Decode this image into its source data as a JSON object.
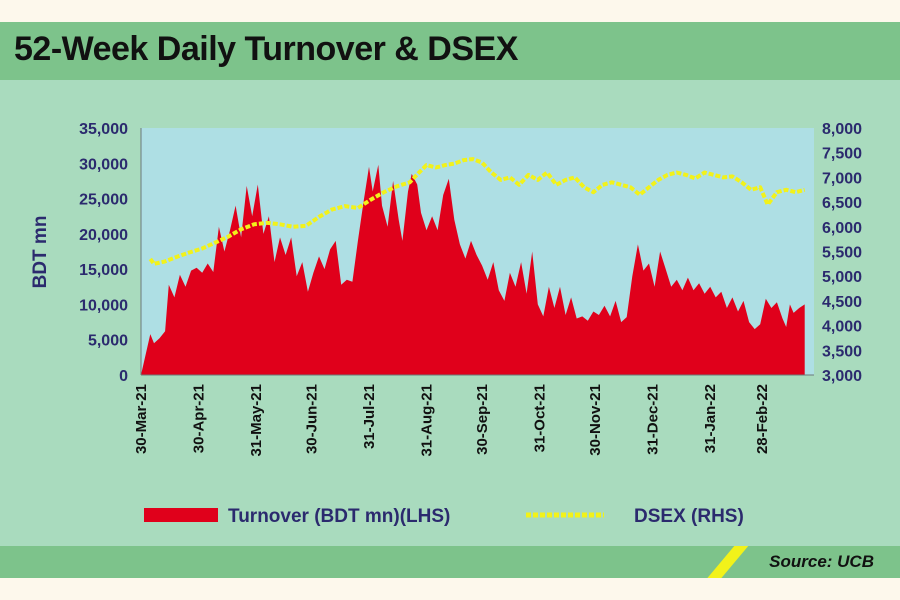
{
  "header": {
    "title": "52-Week Daily Turnover & DSEX"
  },
  "footer": {
    "source": "Source: UCB"
  },
  "colors": {
    "header_bg": "#7dc38b",
    "panel_bg": "#a9dbbe",
    "plot_bg": "#aedfe4",
    "turnover": "#e0001b",
    "dsex": "#f2f21a",
    "axis_text": "#2b2a6e"
  },
  "chart_data": {
    "type": "area",
    "title": "52-Week Daily Turnover & DSEX",
    "ylabel": "BDT mn",
    "y2label": "",
    "ylim": [
      0,
      35000
    ],
    "y2lim": [
      3000,
      8000
    ],
    "yticks": [
      0,
      5000,
      10000,
      15000,
      20000,
      25000,
      30000,
      35000
    ],
    "yticklabels": [
      "0",
      "5,000",
      "10,000",
      "15,000",
      "20,000",
      "25,000",
      "30,000",
      "35,000"
    ],
    "y2ticks": [
      3000,
      3500,
      4000,
      4500,
      5000,
      5500,
      6000,
      6500,
      7000,
      7500,
      8000
    ],
    "y2ticklabels": [
      "3,000",
      "3,500",
      "4,000",
      "4,500",
      "5,000",
      "5,500",
      "6,000",
      "6,500",
      "7,000",
      "7,500",
      "8,000"
    ],
    "xticklabels": [
      "30-Mar-21",
      "30-Apr-21",
      "31-May-21",
      "30-Jun-21",
      "31-Jul-21",
      "31-Aug-21",
      "30-Sep-21",
      "31-Oct-21",
      "30-Nov-21",
      "31-Dec-21",
      "31-Jan-22",
      "28-Feb-22"
    ],
    "legend": {
      "placement": "bottom"
    },
    "grid": false,
    "series": [
      {
        "name": "Turnover (BDT mn)(LHS)",
        "type": "area",
        "axis": "left",
        "points": [
          [
            "2021-03-30",
            0
          ],
          [
            "2021-04-04",
            5800
          ],
          [
            "2021-04-06",
            4500
          ],
          [
            "2021-04-09",
            5200
          ],
          [
            "2021-04-12",
            6200
          ],
          [
            "2021-04-14",
            12800
          ],
          [
            "2021-04-17",
            11000
          ],
          [
            "2021-04-20",
            14200
          ],
          [
            "2021-04-23",
            12500
          ],
          [
            "2021-04-26",
            14800
          ],
          [
            "2021-04-29",
            15200
          ],
          [
            "2021-05-02",
            14500
          ],
          [
            "2021-05-05",
            15800
          ],
          [
            "2021-05-08",
            14600
          ],
          [
            "2021-05-11",
            21000
          ],
          [
            "2021-05-14",
            17500
          ],
          [
            "2021-05-17",
            20500
          ],
          [
            "2021-05-20",
            24000
          ],
          [
            "2021-05-23",
            19500
          ],
          [
            "2021-05-26",
            26800
          ],
          [
            "2021-05-29",
            22500
          ],
          [
            "2021-06-01",
            27000
          ],
          [
            "2021-06-04",
            20000
          ],
          [
            "2021-06-07",
            22500
          ],
          [
            "2021-06-10",
            16000
          ],
          [
            "2021-06-13",
            19500
          ],
          [
            "2021-06-16",
            17000
          ],
          [
            "2021-06-19",
            19500
          ],
          [
            "2021-06-22",
            14000
          ],
          [
            "2021-06-25",
            16000
          ],
          [
            "2021-06-28",
            11800
          ],
          [
            "2021-07-01",
            14500
          ],
          [
            "2021-07-04",
            16800
          ],
          [
            "2021-07-07",
            15000
          ],
          [
            "2021-07-10",
            17800
          ],
          [
            "2021-07-13",
            19000
          ],
          [
            "2021-07-16",
            12800
          ],
          [
            "2021-07-19",
            13500
          ],
          [
            "2021-07-22",
            13200
          ],
          [
            "2021-07-25",
            19000
          ],
          [
            "2021-07-28",
            24500
          ],
          [
            "2021-07-31",
            29500
          ],
          [
            "2021-08-02",
            26000
          ],
          [
            "2021-08-05",
            29800
          ],
          [
            "2021-08-07",
            24000
          ],
          [
            "2021-08-10",
            21000
          ],
          [
            "2021-08-13",
            27500
          ],
          [
            "2021-08-16",
            22000
          ],
          [
            "2021-08-18",
            19000
          ],
          [
            "2021-08-21",
            26000
          ],
          [
            "2021-08-23",
            28500
          ],
          [
            "2021-08-26",
            27000
          ],
          [
            "2021-08-28",
            23000
          ],
          [
            "2021-08-31",
            20500
          ],
          [
            "2021-09-03",
            22500
          ],
          [
            "2021-09-06",
            20500
          ],
          [
            "2021-09-09",
            25500
          ],
          [
            "2021-09-12",
            27800
          ],
          [
            "2021-09-15",
            22000
          ],
          [
            "2021-09-18",
            18500
          ],
          [
            "2021-09-21",
            16500
          ],
          [
            "2021-09-24",
            19000
          ],
          [
            "2021-09-27",
            17000
          ],
          [
            "2021-09-30",
            15500
          ],
          [
            "2021-10-03",
            13500
          ],
          [
            "2021-10-06",
            16000
          ],
          [
            "2021-10-09",
            12000
          ],
          [
            "2021-10-12",
            10500
          ],
          [
            "2021-10-15",
            14500
          ],
          [
            "2021-10-18",
            12500
          ],
          [
            "2021-10-21",
            16000
          ],
          [
            "2021-10-24",
            11500
          ],
          [
            "2021-10-27",
            17500
          ],
          [
            "2021-10-30",
            10000
          ],
          [
            "2021-11-02",
            8300
          ],
          [
            "2021-11-05",
            12500
          ],
          [
            "2021-11-08",
            9500
          ],
          [
            "2021-11-11",
            12500
          ],
          [
            "2021-11-14",
            8500
          ],
          [
            "2021-11-17",
            11000
          ],
          [
            "2021-11-20",
            8000
          ],
          [
            "2021-11-23",
            8300
          ],
          [
            "2021-11-26",
            7700
          ],
          [
            "2021-11-29",
            9000
          ],
          [
            "2021-12-02",
            8500
          ],
          [
            "2021-12-05",
            9800
          ],
          [
            "2021-12-08",
            8300
          ],
          [
            "2021-12-11",
            10500
          ],
          [
            "2021-12-14",
            7500
          ],
          [
            "2021-12-17",
            8200
          ],
          [
            "2021-12-20",
            14000
          ],
          [
            "2021-12-23",
            18500
          ],
          [
            "2021-12-26",
            14800
          ],
          [
            "2021-12-29",
            15800
          ],
          [
            "2022-01-01",
            12500
          ],
          [
            "2022-01-04",
            17500
          ],
          [
            "2022-01-07",
            15000
          ],
          [
            "2022-01-10",
            12500
          ],
          [
            "2022-01-13",
            13500
          ],
          [
            "2022-01-16",
            12000
          ],
          [
            "2022-01-19",
            13800
          ],
          [
            "2022-01-22",
            12000
          ],
          [
            "2022-01-25",
            13000
          ],
          [
            "2022-01-28",
            11500
          ],
          [
            "2022-01-31",
            12500
          ],
          [
            "2022-02-03",
            11000
          ],
          [
            "2022-02-06",
            11800
          ],
          [
            "2022-02-09",
            9500
          ],
          [
            "2022-02-12",
            11000
          ],
          [
            "2022-02-15",
            9000
          ],
          [
            "2022-02-18",
            10500
          ],
          [
            "2022-02-21",
            7500
          ],
          [
            "2022-02-24",
            6500
          ],
          [
            "2022-02-27",
            7200
          ],
          [
            "2022-03-02",
            10800
          ],
          [
            "2022-03-05",
            9500
          ],
          [
            "2022-03-08",
            10300
          ],
          [
            "2022-03-11",
            8000
          ],
          [
            "2022-03-13",
            6800
          ],
          [
            "2022-03-15",
            10000
          ],
          [
            "2022-03-17",
            8800
          ],
          [
            "2022-03-20",
            9500
          ],
          [
            "2022-03-23",
            10000
          ],
          [
            "2022-03-23",
            0
          ]
        ]
      },
      {
        "name": "DSEX (RHS)",
        "type": "line",
        "axis": "right",
        "style": "dashed",
        "points": [
          [
            "2021-04-04",
            5350
          ],
          [
            "2021-04-06",
            5250
          ],
          [
            "2021-04-12",
            5300
          ],
          [
            "2021-04-19",
            5400
          ],
          [
            "2021-04-25",
            5480
          ],
          [
            "2021-05-02",
            5560
          ],
          [
            "2021-05-09",
            5680
          ],
          [
            "2021-05-16",
            5800
          ],
          [
            "2021-05-23",
            5950
          ],
          [
            "2021-05-30",
            6050
          ],
          [
            "2021-06-06",
            6080
          ],
          [
            "2021-06-13",
            6050
          ],
          [
            "2021-06-20",
            6000
          ],
          [
            "2021-06-27",
            6020
          ],
          [
            "2021-07-04",
            6200
          ],
          [
            "2021-07-11",
            6350
          ],
          [
            "2021-07-18",
            6420
          ],
          [
            "2021-07-25",
            6380
          ],
          [
            "2021-08-01",
            6550
          ],
          [
            "2021-08-08",
            6700
          ],
          [
            "2021-08-15",
            6820
          ],
          [
            "2021-08-22",
            6900
          ],
          [
            "2021-08-27",
            7100
          ],
          [
            "2021-08-31",
            7250
          ],
          [
            "2021-09-05",
            7200
          ],
          [
            "2021-09-10",
            7250
          ],
          [
            "2021-09-15",
            7280
          ],
          [
            "2021-09-20",
            7350
          ],
          [
            "2021-09-25",
            7370
          ],
          [
            "2021-09-30",
            7300
          ],
          [
            "2021-10-05",
            7100
          ],
          [
            "2021-10-10",
            6950
          ],
          [
            "2021-10-15",
            7000
          ],
          [
            "2021-10-20",
            6850
          ],
          [
            "2021-10-25",
            7050
          ],
          [
            "2021-10-30",
            6950
          ],
          [
            "2021-11-04",
            7100
          ],
          [
            "2021-11-09",
            6850
          ],
          [
            "2021-11-14",
            6950
          ],
          [
            "2021-11-19",
            7000
          ],
          [
            "2021-11-24",
            6800
          ],
          [
            "2021-11-29",
            6700
          ],
          [
            "2021-12-04",
            6850
          ],
          [
            "2021-12-09",
            6900
          ],
          [
            "2021-12-14",
            6850
          ],
          [
            "2021-12-19",
            6800
          ],
          [
            "2021-12-24",
            6650
          ],
          [
            "2021-12-29",
            6800
          ],
          [
            "2022-01-03",
            6950
          ],
          [
            "2022-01-08",
            7050
          ],
          [
            "2022-01-13",
            7100
          ],
          [
            "2022-01-18",
            7050
          ],
          [
            "2022-01-23",
            6980
          ],
          [
            "2022-01-28",
            7100
          ],
          [
            "2022-02-02",
            7050
          ],
          [
            "2022-02-07",
            7000
          ],
          [
            "2022-02-12",
            7020
          ],
          [
            "2022-02-17",
            6900
          ],
          [
            "2022-02-22",
            6750
          ],
          [
            "2022-02-27",
            6800
          ],
          [
            "2022-03-03",
            6450
          ],
          [
            "2022-03-08",
            6700
          ],
          [
            "2022-03-13",
            6750
          ],
          [
            "2022-03-18",
            6700
          ],
          [
            "2022-03-23",
            6750
          ]
        ]
      }
    ]
  }
}
